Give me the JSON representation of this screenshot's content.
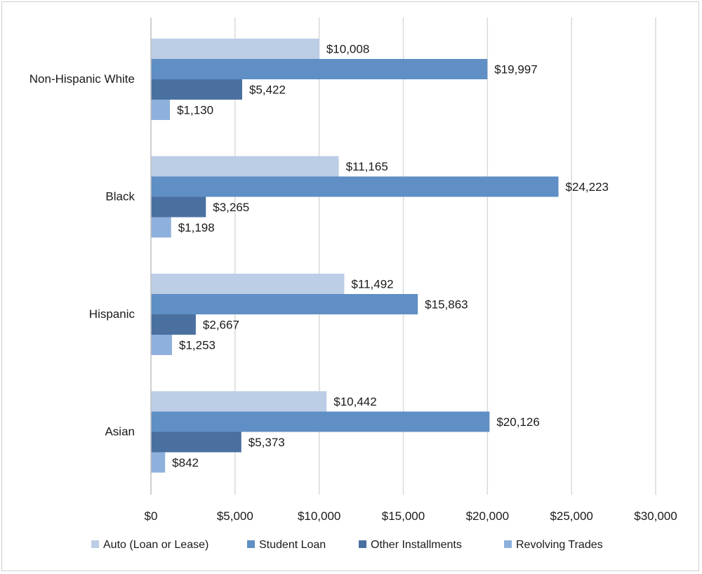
{
  "chart_data": {
    "type": "bar",
    "orientation": "horizontal",
    "title": "",
    "xlabel": "",
    "ylabel": "",
    "xlim": [
      0,
      30000
    ],
    "grid": true,
    "legend_position": "bottom",
    "categories": [
      "Non-Hispanic White",
      "Black",
      "Hispanic",
      "Asian"
    ],
    "x_ticks": [
      "$0",
      "$5,000",
      "$10,000",
      "$15,000",
      "$20,000",
      "$25,000",
      "$30,000"
    ],
    "series": [
      {
        "name": "Auto (Loan or Lease)",
        "color": "#bccde6",
        "values": [
          10008,
          11165,
          11492,
          10442
        ],
        "labels": [
          "$10,008",
          "$11,165",
          "$11,492",
          "$10,442"
        ]
      },
      {
        "name": "Student Loan",
        "color": "#5f8fc5",
        "values": [
          19997,
          24223,
          15863,
          20126
        ],
        "labels": [
          "$19,997",
          "$24,223",
          "$15,863",
          "$20,126"
        ]
      },
      {
        "name": "Other Installments",
        "color": "#4a70a0",
        "values": [
          5422,
          3265,
          2667,
          5373
        ],
        "labels": [
          "$5,422",
          "$3,265",
          "$2,667",
          "$5,373"
        ]
      },
      {
        "name": "Revolving Trades",
        "color": "#8eb0dc",
        "values": [
          1130,
          1198,
          1253,
          842
        ],
        "labels": [
          "$1,130",
          "$1,198",
          "$1,253",
          "$842"
        ]
      }
    ]
  }
}
